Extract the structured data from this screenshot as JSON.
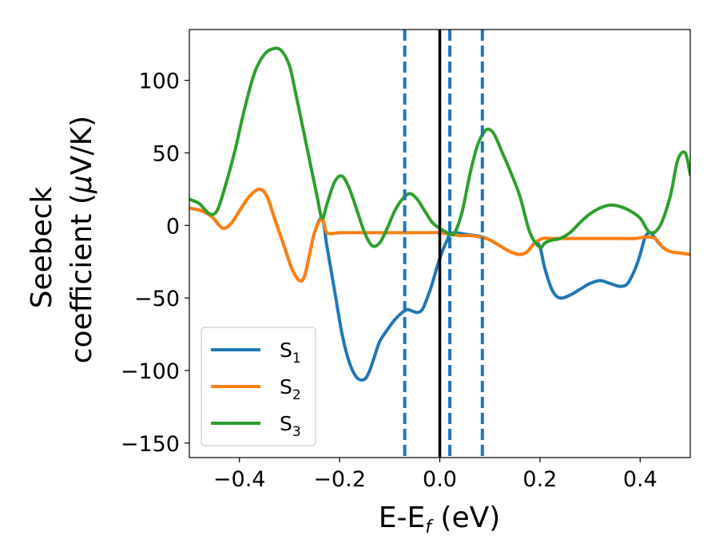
{
  "chart_data": {
    "type": "line",
    "xlabel": {
      "main": "E-E",
      "sub": "f",
      "unit": " (eV)"
    },
    "ylabel": {
      "line1": "Seebeck",
      "line2_a": "coefficient  (",
      "line2_mu": "μ",
      "line2_b": "V/K)"
    },
    "xlim": [
      -0.5,
      0.5
    ],
    "ylim": [
      -160,
      135
    ],
    "xticks": [
      -0.4,
      -0.2,
      0.0,
      0.2,
      0.4
    ],
    "xtick_labels": [
      "−0.4",
      "−0.2",
      "0.0",
      "0.2",
      "0.4"
    ],
    "yticks": [
      100,
      50,
      0,
      -50,
      -100,
      -150
    ],
    "ytick_labels": [
      "100",
      "50",
      "0",
      "−50",
      "−100",
      "−150"
    ],
    "grid": false,
    "legend_position": "bottom-left",
    "vlines": [
      {
        "x": -0.07,
        "style": "dashed",
        "color": "#1f77b4"
      },
      {
        "x": 0.0,
        "style": "solid",
        "color": "#000000"
      },
      {
        "x": 0.02,
        "style": "dashed",
        "color": "#1f77b4"
      },
      {
        "x": 0.085,
        "style": "dashed",
        "color": "#1f77b4"
      }
    ],
    "series": [
      {
        "name": "S",
        "name_sub": "1",
        "color": "#1f77b4",
        "x": [
          -0.5,
          -0.475,
          -0.455,
          -0.44,
          -0.43,
          -0.415,
          -0.4,
          -0.38,
          -0.36,
          -0.345,
          -0.33,
          -0.31,
          -0.295,
          -0.28,
          -0.27,
          -0.26,
          -0.25,
          -0.235,
          -0.225,
          -0.21,
          -0.195,
          -0.18,
          -0.165,
          -0.15,
          -0.14,
          -0.13,
          -0.12,
          -0.105,
          -0.09,
          -0.075,
          -0.065,
          -0.055,
          -0.045,
          -0.035,
          -0.025,
          -0.015,
          -0.005,
          0.005,
          0.015,
          0.02,
          0.03,
          0.05,
          0.07,
          0.085,
          0.1,
          0.12,
          0.14,
          0.16,
          0.175,
          0.19,
          0.2,
          0.21,
          0.225,
          0.24,
          0.26,
          0.28,
          0.3,
          0.32,
          0.34,
          0.36,
          0.375,
          0.39,
          0.4,
          0.41,
          0.42,
          0.43,
          0.445,
          0.46,
          0.48,
          0.5
        ],
        "y": [
          12,
          10,
          6,
          0,
          -2,
          2,
          10,
          20,
          25,
          20,
          5,
          -15,
          -30,
          -38,
          -35,
          -20,
          -5,
          5,
          -15,
          -45,
          -75,
          -95,
          -105,
          -106,
          -100,
          -90,
          -80,
          -72,
          -65,
          -60,
          -58,
          -59,
          -60,
          -58,
          -50,
          -40,
          -28,
          -18,
          -10,
          -6,
          -5,
          -6,
          -7,
          -8,
          -10,
          -14,
          -18,
          -20,
          -18,
          -12,
          -15,
          -30,
          -45,
          -50,
          -48,
          -44,
          -40,
          -38,
          -40,
          -42,
          -40,
          -30,
          -20,
          -8,
          -5,
          -9,
          -15,
          -18,
          -19,
          -20
        ]
      },
      {
        "name": "S",
        "name_sub": "2",
        "color": "#ff7f0e",
        "x": [
          -0.5,
          -0.475,
          -0.455,
          -0.44,
          -0.43,
          -0.415,
          -0.4,
          -0.38,
          -0.36,
          -0.345,
          -0.33,
          -0.31,
          -0.295,
          -0.28,
          -0.27,
          -0.26,
          -0.25,
          -0.235,
          -0.225,
          -0.2,
          -0.18,
          -0.16,
          -0.14,
          -0.12,
          -0.1,
          -0.08,
          -0.06,
          -0.04,
          -0.02,
          0.0,
          0.02,
          0.04,
          0.06,
          0.08,
          0.1,
          0.12,
          0.14,
          0.16,
          0.175,
          0.19,
          0.205,
          0.22,
          0.24,
          0.27,
          0.3,
          0.33,
          0.36,
          0.39,
          0.41,
          0.43,
          0.445,
          0.46,
          0.48,
          0.5
        ],
        "y": [
          12,
          10,
          6,
          0,
          -2,
          2,
          10,
          20,
          25,
          20,
          5,
          -15,
          -30,
          -38,
          -35,
          -20,
          -5,
          5,
          -5,
          -5,
          -5,
          -5,
          -5,
          -5,
          -5,
          -5,
          -5,
          -5,
          -5,
          -5,
          -6,
          -7,
          -7,
          -8,
          -10,
          -14,
          -18,
          -20,
          -18,
          -12,
          -9,
          -9,
          -9,
          -9,
          -9,
          -9,
          -9,
          -9,
          -8,
          -9,
          -15,
          -18,
          -19,
          -20
        ]
      },
      {
        "name": "S",
        "name_sub": "3",
        "color": "#2ca02c",
        "x": [
          -0.5,
          -0.48,
          -0.46,
          -0.445,
          -0.43,
          -0.41,
          -0.39,
          -0.37,
          -0.35,
          -0.33,
          -0.315,
          -0.3,
          -0.29,
          -0.275,
          -0.26,
          -0.245,
          -0.235,
          -0.225,
          -0.21,
          -0.195,
          -0.18,
          -0.165,
          -0.15,
          -0.135,
          -0.12,
          -0.105,
          -0.09,
          -0.075,
          -0.06,
          -0.045,
          -0.03,
          -0.015,
          0.0,
          0.01,
          0.02,
          0.03,
          0.045,
          0.06,
          0.075,
          0.09,
          0.1,
          0.11,
          0.125,
          0.14,
          0.16,
          0.18,
          0.2,
          0.21,
          0.225,
          0.24,
          0.26,
          0.28,
          0.3,
          0.32,
          0.34,
          0.36,
          0.38,
          0.4,
          0.42,
          0.44,
          0.46,
          0.475,
          0.49,
          0.5
        ],
        "y": [
          18,
          15,
          8,
          10,
          25,
          50,
          80,
          105,
          118,
          122,
          120,
          110,
          95,
          70,
          45,
          20,
          5,
          15,
          30,
          34,
          25,
          10,
          -5,
          -14,
          -12,
          -2,
          10,
          18,
          22,
          18,
          10,
          2,
          -2,
          -4,
          -6,
          -5,
          10,
          35,
          55,
          65,
          66,
          62,
          50,
          38,
          20,
          -5,
          -15,
          -12,
          -10,
          -9,
          -5,
          2,
          8,
          12,
          14,
          13,
          10,
          5,
          -5,
          0,
          20,
          45,
          50,
          35
        ]
      }
    ]
  }
}
